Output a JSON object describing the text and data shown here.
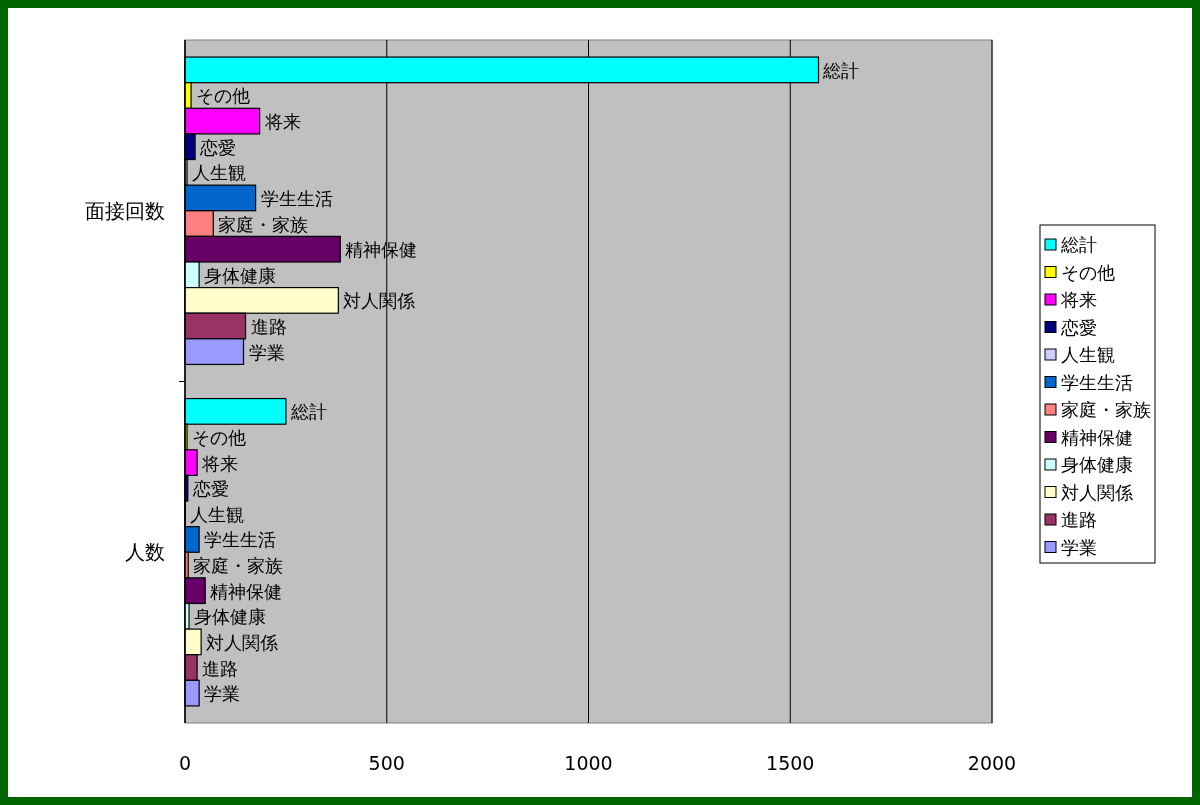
{
  "chart_data": {
    "type": "bar",
    "orientation": "horizontal",
    "categories": [
      "面接回数",
      "人数"
    ],
    "series": [
      {
        "name": "総計",
        "color": "#00ffff",
        "values": [
          1570,
          250
        ],
        "value_labels": [
          "総計",
          "総計"
        ]
      },
      {
        "name": "その他",
        "color": "#ffff00",
        "values": [
          15,
          5
        ],
        "value_labels": [
          "その他",
          "その他"
        ]
      },
      {
        "name": "将来",
        "color": "#ff00ff",
        "values": [
          185,
          30
        ],
        "value_labels": [
          "将来",
          "将来"
        ]
      },
      {
        "name": "恋愛",
        "color": "#000080",
        "values": [
          25,
          7
        ],
        "value_labels": [
          "恋愛",
          "恋愛"
        ]
      },
      {
        "name": "人生観",
        "color": "#ccccff",
        "values": [
          5,
          1
        ],
        "value_labels": [
          "人生観",
          "人生観"
        ]
      },
      {
        "name": "学生生活",
        "color": "#0066cc",
        "values": [
          175,
          35
        ],
        "value_labels": [
          "学生生活",
          "学生生活"
        ]
      },
      {
        "name": "家庭・家族",
        "color": "#ff8080",
        "values": [
          70,
          8
        ],
        "value_labels": [
          "家庭・家族",
          "家庭・家族"
        ]
      },
      {
        "name": "精神保健",
        "color": "#660066",
        "values": [
          385,
          50
        ],
        "value_labels": [
          "精神保健",
          "精神保健"
        ]
      },
      {
        "name": "身体健康",
        "color": "#ccffff",
        "values": [
          35,
          10
        ],
        "value_labels": [
          "身体健康",
          "身体健康"
        ]
      },
      {
        "name": "対人関係",
        "color": "#ffffcc",
        "values": [
          380,
          40
        ],
        "value_labels": [
          "対人関係",
          "対人関係"
        ]
      },
      {
        "name": "進路",
        "color": "#993366",
        "values": [
          150,
          30
        ],
        "value_labels": [
          "進路",
          "進路"
        ]
      },
      {
        "name": "学業",
        "color": "#9999ff",
        "values": [
          145,
          35
        ],
        "value_labels": [
          "学業",
          "学業"
        ]
      }
    ],
    "xlim": [
      0,
      2000
    ],
    "xticks": [
      0,
      500,
      1000,
      1500,
      2000
    ],
    "grid": "x",
    "legend": "right"
  }
}
